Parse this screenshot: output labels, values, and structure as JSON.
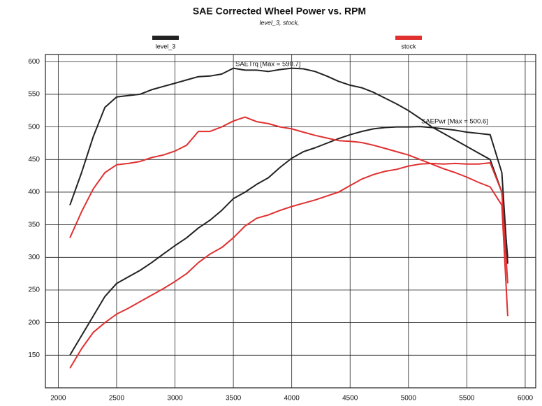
{
  "chart_data": {
    "type": "line",
    "title": "SAE Corrected Wheel Power vs. RPM",
    "subtitle": "level_3, stock,",
    "annotations": [
      "SAETrq [Max = 590.7]",
      "SAEPwr [Max = 500.6]"
    ],
    "x": [
      2100,
      2200,
      2300,
      2400,
      2500,
      2600,
      2700,
      2800,
      2900,
      3000,
      3100,
      3200,
      3300,
      3400,
      3500,
      3600,
      3700,
      3800,
      3900,
      4000,
      4100,
      4200,
      4300,
      4400,
      4500,
      4600,
      4700,
      4800,
      4900,
      5000,
      5100,
      5200,
      5300,
      5400,
      5500,
      5600,
      5700,
      5800,
      5850
    ],
    "series": [
      {
        "name": "level_3",
        "color": "#222222",
        "torque": [
          380,
          430,
          485,
          530,
          546,
          548,
          550,
          557,
          562,
          567,
          572,
          577,
          578,
          581,
          590,
          587,
          587,
          585,
          588,
          590,
          589,
          585,
          578,
          570,
          564,
          560,
          553,
          544,
          535,
          525,
          513,
          500,
          490,
          480,
          470,
          460,
          450,
          400,
          300
        ],
        "power": [
          150,
          180,
          210,
          240,
          260,
          270,
          280,
          292,
          305,
          318,
          330,
          345,
          357,
          372,
          390,
          400,
          412,
          422,
          438,
          452,
          462,
          468,
          475,
          482,
          488,
          493,
          497,
          499,
          500,
          500,
          500.6,
          499,
          497,
          495,
          492,
          490,
          488,
          430,
          290
        ]
      },
      {
        "name": "stock",
        "color": "#e03030",
        "torque": [
          330,
          370,
          405,
          430,
          442,
          444,
          447,
          453,
          457,
          463,
          472,
          493,
          493,
          500,
          509,
          515,
          508,
          505,
          500,
          497,
          492,
          487,
          483,
          479,
          478,
          476,
          472,
          467,
          462,
          457,
          450,
          443,
          436,
          430,
          423,
          415,
          408,
          380,
          210
        ],
        "power": [
          130,
          160,
          185,
          200,
          213,
          222,
          232,
          242,
          252,
          263,
          275,
          292,
          305,
          315,
          330,
          348,
          360,
          365,
          372,
          378,
          383,
          388,
          394,
          400,
          410,
          420,
          427,
          432,
          435,
          440,
          443,
          444,
          443,
          444,
          443,
          443,
          445,
          400,
          260
        ]
      }
    ],
    "xlim": [
      1890,
      6090
    ],
    "xticks": [
      2000,
      2500,
      3000,
      3500,
      4000,
      4500,
      5000,
      5500,
      6000
    ],
    "ylim": [
      100,
      611
    ],
    "yticks": [
      150,
      200,
      250,
      300,
      350,
      400,
      450,
      500,
      550,
      600
    ],
    "grid": true
  }
}
